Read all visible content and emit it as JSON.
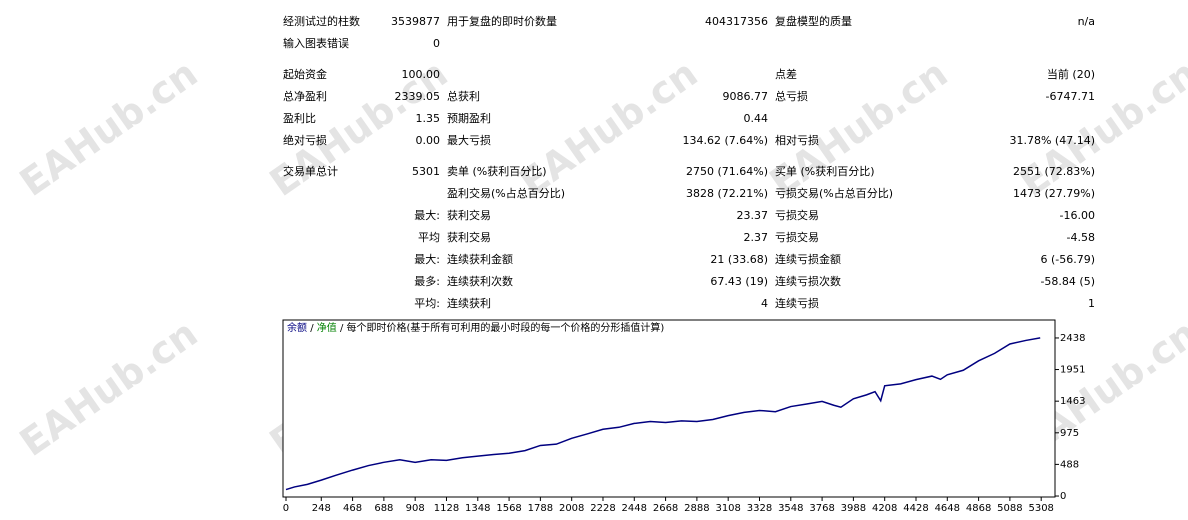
{
  "watermark": "EAHub.cn",
  "report": {
    "groups": [
      [
        {
          "c0": "经测试过的柱数",
          "c1": "3539877",
          "c2": "用于复盘的即时价数量",
          "c3": "404317356",
          "c4": "复盘模型的质量",
          "c5": "n/a"
        },
        {
          "c0": "输入图表错误",
          "c1": "0"
        }
      ],
      [
        {
          "c0": "起始资金",
          "c1": "100.00",
          "c4": "点差",
          "c5": "当前 (20)"
        },
        {
          "c0": "总净盈利",
          "c1": "2339.05",
          "c2": "总获利",
          "c3": "9086.77",
          "c4": "总亏损",
          "c5": "-6747.71"
        },
        {
          "c0": "盈利比",
          "c1": "1.35",
          "c2": "预期盈利",
          "c3": "0.44"
        },
        {
          "c0": "绝对亏损",
          "c1": "0.00",
          "c2": "最大亏损",
          "c3": "134.62 (7.64%)",
          "c4": "相对亏损",
          "c5": "31.78% (47.14)"
        }
      ],
      [
        {
          "c0": "交易单总计",
          "c1": "5301",
          "c2": "卖单 (%获利百分比)",
          "c3": "2750 (71.64%)",
          "c4": "买单 (%获利百分比)",
          "c5": "2551 (72.83%)"
        },
        {
          "c2": "盈利交易(%占总百分比)",
          "c3": "3828 (72.21%)",
          "c4": "亏损交易(%占总百分比)",
          "c5": "1473 (27.79%)"
        },
        {
          "c1": "最大:",
          "c2": "获利交易",
          "c3": "23.37",
          "c4": "亏损交易",
          "c5": "-16.00"
        },
        {
          "c1": "平均",
          "c2": "获利交易",
          "c3": "2.37",
          "c4": "亏损交易",
          "c5": "-4.58"
        },
        {
          "c1": "最大:",
          "c2": "连续获利金额",
          "c3": "21 (33.68)",
          "c4": "连续亏损金额",
          "c5": "6 (-56.79)"
        },
        {
          "c1": "最多:",
          "c2": "连续获利次数",
          "c3": "67.43 (19)",
          "c4": "连续亏损次数",
          "c5": "-58.84 (5)"
        },
        {
          "c1": "平均:",
          "c2": "连续获利",
          "c3": "4",
          "c4": "连续亏损",
          "c5": "1"
        }
      ]
    ]
  },
  "chart_data": {
    "type": "line",
    "legend": [
      {
        "name": "余额",
        "color": "#000080"
      },
      {
        "name": "净值",
        "color": "#008000"
      }
    ],
    "separator": "/",
    "note": "每个即时价格(基于所有可利用的最小时段的每一个价格的分形插值计算)",
    "x": [
      0,
      60,
      150,
      248,
      350,
      468,
      580,
      688,
      800,
      908,
      1020,
      1128,
      1240,
      1348,
      1460,
      1568,
      1680,
      1788,
      1900,
      2008,
      2120,
      2228,
      2340,
      2448,
      2560,
      2668,
      2780,
      2888,
      3000,
      3108,
      3220,
      3328,
      3440,
      3548,
      3660,
      3768,
      3850,
      3900,
      3988,
      4080,
      4140,
      4180,
      4208,
      4320,
      4428,
      4540,
      4600,
      4648,
      4760,
      4868,
      4980,
      5088,
      5200,
      5301
    ],
    "series": [
      {
        "name": "余额",
        "color": "#000080",
        "values": [
          100,
          140,
          180,
          245,
          320,
          400,
          470,
          520,
          560,
          520,
          560,
          550,
          590,
          615,
          640,
          660,
          700,
          780,
          800,
          890,
          960,
          1030,
          1060,
          1120,
          1150,
          1135,
          1160,
          1150,
          1180,
          1240,
          1290,
          1320,
          1300,
          1380,
          1420,
          1460,
          1400,
          1370,
          1500,
          1560,
          1610,
          1470,
          1700,
          1730,
          1795,
          1850,
          1800,
          1870,
          1940,
          2085,
          2200,
          2345,
          2400,
          2440
        ]
      }
    ],
    "xlim": [
      -21,
      5405
    ],
    "ylim": [
      -15,
      2715
    ],
    "xticks": [
      0,
      248,
      468,
      688,
      908,
      1128,
      1348,
      1568,
      1788,
      2008,
      2228,
      2448,
      2668,
      2888,
      3108,
      3328,
      3548,
      3768,
      3988,
      4208,
      4428,
      4648,
      4868,
      5088,
      5308
    ],
    "yticks": [
      0,
      488,
      975,
      1463,
      1951,
      2438
    ]
  }
}
